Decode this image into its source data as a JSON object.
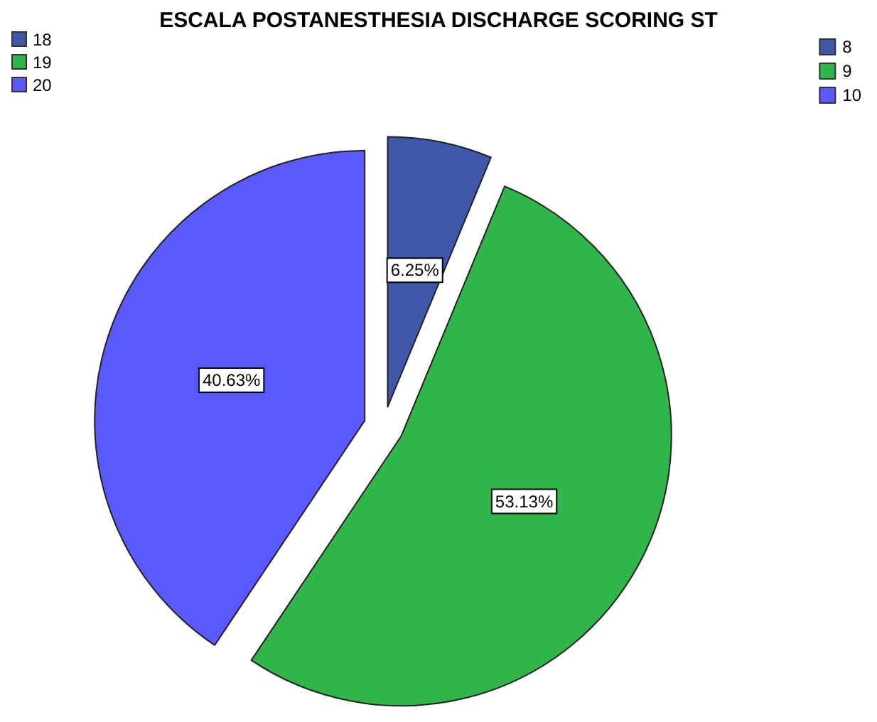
{
  "chart_data": {
    "type": "pie",
    "title": "ESCALA POSTANESTHESIA DISCHARGE SCORING ST",
    "categories": [
      "8",
      "9",
      "10"
    ],
    "values": [
      6.25,
      53.13,
      40.63
    ],
    "colors": [
      "#3f57a8",
      "#2fb54a",
      "#5a5afc"
    ],
    "value_labels": [
      "6.25%",
      "53.13%",
      "40.63%"
    ],
    "legend": "top right",
    "annotations": [
      "18",
      "19",
      "20"
    ]
  }
}
